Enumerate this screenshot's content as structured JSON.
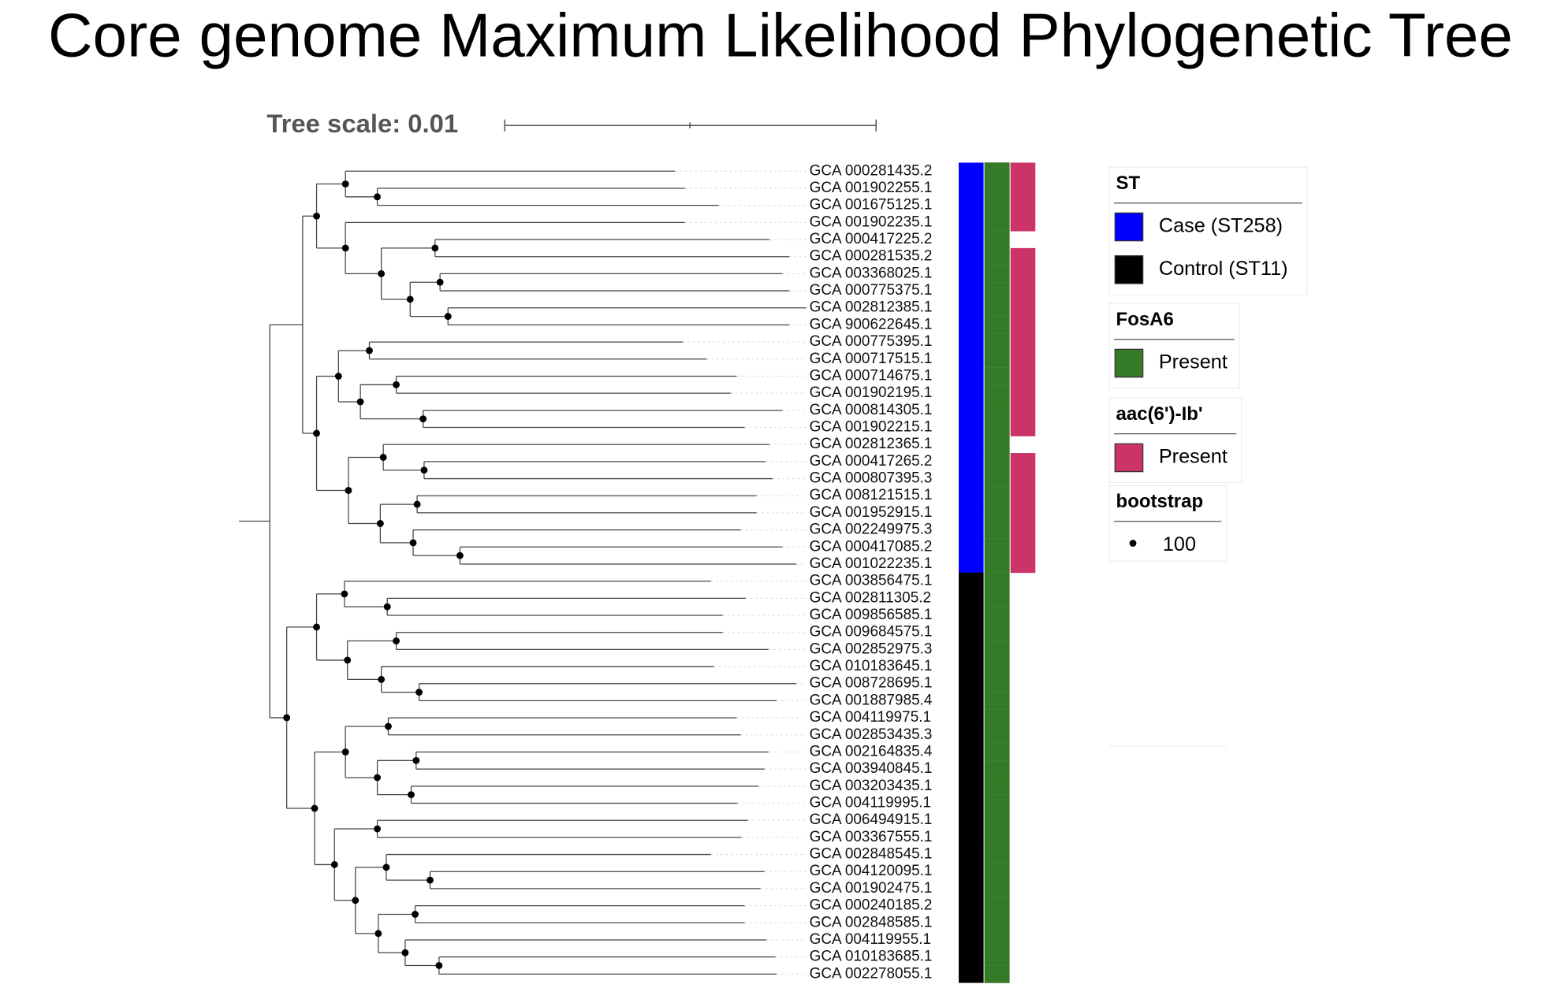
{
  "title": "Core genome Maximum Likelihood Phylogenetic Tree",
  "tree_scale": "Tree scale: 0.01",
  "leaves": [
    "GCA 000281435.2",
    "GCA 001902255.1",
    "GCA 001675125.1",
    "GCA 001902235.1",
    "GCA 000417225.2",
    "GCA 000281535.2",
    "GCA 003368025.1",
    "GCA 000775375.1",
    "GCA 002812385.1",
    "GCA 900622645.1",
    "GCA 000775395.1",
    "GCA 000717515.1",
    "GCA 000714675.1",
    "GCA 001902195.1",
    "GCA 000814305.1",
    "GCA 001902215.1",
    "GCA 002812365.1",
    "GCA 000417265.2",
    "GCA 000807395.3",
    "GCA 008121515.1",
    "GCA 001952915.1",
    "GCA 002249975.3",
    "GCA 000417085.2",
    "GCA 001022235.1",
    "GCA 003856475.1",
    "GCA 002811305.2",
    "GCA 009856585.1",
    "GCA 009684575.1",
    "GCA 002852975.3",
    "GCA 010183645.1",
    "GCA 008728695.1",
    "GCA 001887985.4",
    "GCA 004119975.1",
    "GCA 002853435.3",
    "GCA 002164835.4",
    "GCA 003940845.1",
    "GCA 003203435.1",
    "GCA 004119995.1",
    "GCA 006494915.1",
    "GCA 003367555.1",
    "GCA 002848545.1",
    "GCA 004120095.1",
    "GCA 001902475.1",
    "GCA 000240185.2",
    "GCA 002848585.1",
    "GCA 004119955.1",
    "GCA 010183685.1",
    "GCA 002278055.1"
  ],
  "legend": [
    {
      "title": "ST",
      "items": [
        "Case (ST258)",
        "Control (ST11)"
      ]
    },
    {
      "title": "FosA6",
      "items": [
        "Present"
      ]
    },
    {
      "title": "aac(6')-Ib'",
      "items": [
        "Present"
      ]
    },
    {
      "title": "bootstrap",
      "items": [
        "100"
      ]
    }
  ]
}
